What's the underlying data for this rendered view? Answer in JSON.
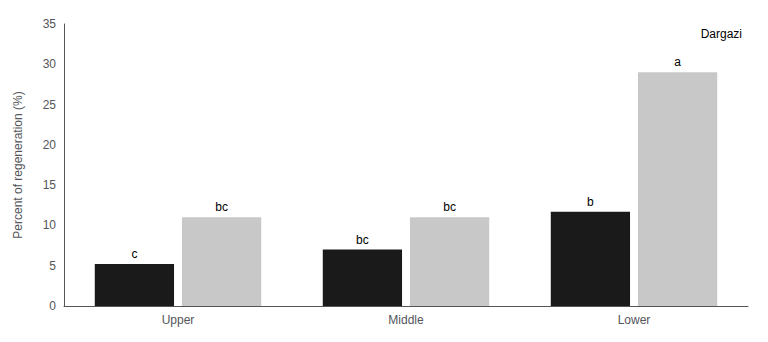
{
  "chart_data": {
    "type": "bar",
    "ylabel": "Percent of regeneration (%)",
    "categories": [
      "Upper",
      "Middle",
      "Lower"
    ],
    "series": [
      {
        "color": "#1a1a1a",
        "values": [
          5.2,
          7.0,
          11.7
        ],
        "annotations": [
          "c",
          "bc",
          "b"
        ]
      },
      {
        "color": "#c8c8c8",
        "values": [
          11.0,
          11.0,
          29.0
        ],
        "annotations": [
          "bc",
          "bc",
          "a"
        ]
      }
    ],
    "ylim": [
      0,
      35
    ],
    "yticks": [
      0,
      5,
      10,
      15,
      20,
      25,
      30,
      35
    ],
    "grid": false,
    "annotations": [
      "Dargazi"
    ]
  }
}
